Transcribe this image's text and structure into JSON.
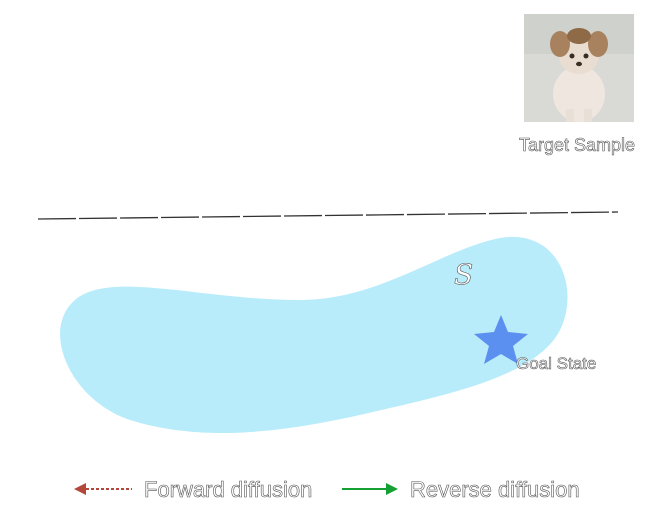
{
  "target": {
    "label": "Target Sample"
  },
  "region": {
    "symbol": "S",
    "color": "#b8ecfa"
  },
  "goal": {
    "label": "Goal State",
    "color": "#5b8ff0"
  },
  "legend": {
    "forward_label": "Forward diffusion",
    "reverse_label": "Reverse diffusion",
    "forward_color": "#b2473a",
    "reverse_color": "#14a032"
  },
  "image_icon": "dog-photo-icon"
}
